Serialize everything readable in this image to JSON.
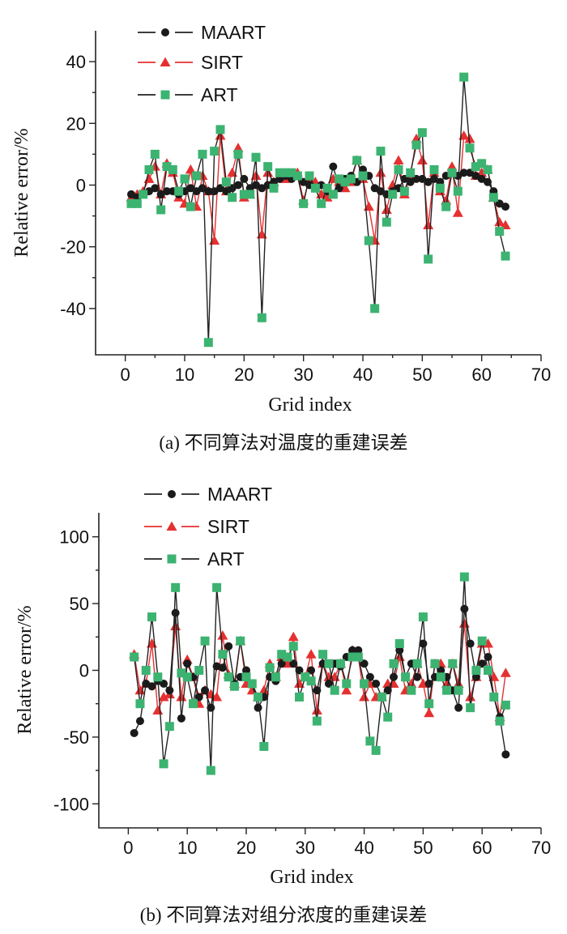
{
  "chart_data": [
    {
      "type": "line",
      "caption": "(a) 不同算法对温度的重建误差",
      "xlabel": "Grid index",
      "ylabel": "Relative error/%",
      "xlim": [
        -5,
        70
      ],
      "ylim": [
        -55,
        50
      ],
      "xticks": [
        0,
        10,
        20,
        30,
        40,
        50,
        60,
        70
      ],
      "yticks": [
        -40,
        -20,
        0,
        20,
        40
      ],
      "xtick_labels": [
        "0",
        "10",
        "20",
        "30",
        "40",
        "50",
        "60",
        "70"
      ],
      "ytick_labels": [
        "-40",
        "-20",
        "0",
        "20",
        "40"
      ],
      "series": [
        {
          "name": "MAART",
          "color": "#1a1a1a",
          "line_color": "#222222",
          "marker": "circle",
          "values": [
            -3,
            -4,
            -3,
            -2,
            -1,
            -3,
            -2,
            -2,
            -3,
            -2,
            -1,
            -2,
            -1,
            -2,
            -2,
            -1,
            -2,
            -1,
            0,
            2,
            -1,
            0,
            -1,
            0,
            1,
            2,
            3,
            2,
            3,
            1,
            0,
            -1,
            0,
            -2,
            6,
            -1,
            2,
            3,
            1,
            5,
            3,
            -1,
            -2,
            -3,
            -2,
            -1,
            2,
            1,
            2,
            2,
            1,
            2,
            1,
            3,
            4,
            3,
            4,
            4,
            3,
            2,
            1,
            -2,
            -6,
            -7
          ]
        },
        {
          "name": "SIRT",
          "color": "#e53030",
          "line_color": "#e53030",
          "marker": "triangle",
          "values": [
            -4,
            -3,
            -2,
            2,
            6,
            -3,
            7,
            4,
            -4,
            -6,
            5,
            -7,
            3,
            -2,
            -18,
            16,
            -2,
            4,
            12,
            -4,
            -3,
            3,
            -16,
            4,
            1,
            3,
            2,
            3,
            4,
            -5,
            2,
            1,
            -3,
            -4,
            2,
            1,
            -1,
            1,
            8,
            2,
            -7,
            -18,
            4,
            -8,
            0,
            8,
            -3,
            3,
            15,
            8,
            -13,
            4,
            -2,
            -5,
            6,
            -9,
            16,
            15,
            3,
            4,
            5,
            -4,
            -12,
            -13
          ]
        },
        {
          "name": "ART",
          "color": "#3cb371",
          "line_color": "#222222",
          "marker": "square",
          "values": [
            -6,
            -6,
            -3,
            5,
            10,
            -8,
            6,
            5,
            -2,
            2,
            -7,
            3,
            10,
            -51,
            11,
            18,
            1,
            -4,
            10,
            -3,
            -3,
            9,
            -43,
            6,
            -1,
            4,
            4,
            4,
            3,
            -6,
            3,
            -1,
            -6,
            -1,
            -3,
            2,
            1,
            2,
            8,
            3,
            -18,
            -40,
            11,
            -12,
            -3,
            5,
            -2,
            4,
            13,
            17,
            -24,
            5,
            -1,
            -7,
            4,
            -2,
            35,
            12,
            6,
            7,
            5,
            -4,
            -15,
            -23
          ]
        }
      ],
      "legend": [
        "MAART",
        "SIRT",
        "ART"
      ]
    },
    {
      "type": "line",
      "caption": "(b) 不同算法对组分浓度的重建误差",
      "xlabel": "Grid index",
      "ylabel": "Relative error/%",
      "xlim": [
        -5,
        70
      ],
      "ylim": [
        -118,
        118
      ],
      "xticks": [
        0,
        10,
        20,
        30,
        40,
        50,
        60,
        70
      ],
      "yticks": [
        -100,
        -50,
        0,
        50,
        100
      ],
      "xtick_labels": [
        "0",
        "10",
        "20",
        "30",
        "40",
        "50",
        "60",
        "70"
      ],
      "ytick_labels": [
        "-100",
        "-50",
        "0",
        "50",
        "100"
      ],
      "series": [
        {
          "name": "MAART",
          "color": "#1a1a1a",
          "line_color": "#222222",
          "marker": "circle",
          "values": [
            -47,
            -38,
            -10,
            -12,
            -8,
            -10,
            -15,
            43,
            -36,
            5,
            -5,
            -20,
            -15,
            -28,
            3,
            2,
            18,
            -10,
            -5,
            0,
            -10,
            -28,
            -20,
            -5,
            -8,
            5,
            10,
            5,
            0,
            -5,
            0,
            -15,
            5,
            -10,
            5,
            3,
            10,
            15,
            15,
            5,
            -5,
            -10,
            -20,
            -15,
            -5,
            15,
            -5,
            5,
            -5,
            20,
            -10,
            -5,
            0,
            -5,
            -15,
            -28,
            46,
            20,
            -5,
            5,
            10,
            -20,
            -35,
            -63
          ]
        },
        {
          "name": "SIRT",
          "color": "#e53030",
          "line_color": "#e53030",
          "marker": "triangle",
          "values": [
            12,
            -15,
            -10,
            20,
            -30,
            -20,
            -18,
            33,
            -20,
            8,
            -5,
            -25,
            -15,
            -18,
            -20,
            26,
            -3,
            -10,
            22,
            -10,
            -15,
            -20,
            -15,
            5,
            -5,
            10,
            5,
            25,
            -10,
            -5,
            12,
            -30,
            5,
            -5,
            -5,
            5,
            -15,
            15,
            10,
            -20,
            -10,
            -20,
            -20,
            -10,
            -10,
            10,
            -15,
            -10,
            5,
            -10,
            -32,
            5,
            5,
            -10,
            5,
            -10,
            35,
            -20,
            -5,
            20,
            20,
            -5,
            -35,
            -2
          ]
        },
        {
          "name": "ART",
          "color": "#3cb371",
          "line_color": "#222222",
          "marker": "square",
          "values": [
            10,
            -25,
            0,
            40,
            -5,
            -70,
            -42,
            62,
            -2,
            -5,
            -25,
            0,
            22,
            -75,
            62,
            12,
            -5,
            -12,
            22,
            -5,
            -10,
            -20,
            -57,
            2,
            -5,
            12,
            10,
            18,
            -20,
            -5,
            -8,
            -38,
            12,
            5,
            -15,
            5,
            -10,
            10,
            10,
            -10,
            -53,
            -60,
            -20,
            -35,
            5,
            20,
            -5,
            -15,
            5,
            40,
            -25,
            5,
            -5,
            -15,
            5,
            -15,
            70,
            -28,
            0,
            22,
            0,
            -20,
            -38,
            -26
          ]
        }
      ],
      "legend": [
        "MAART",
        "SIRT",
        "ART"
      ]
    }
  ]
}
